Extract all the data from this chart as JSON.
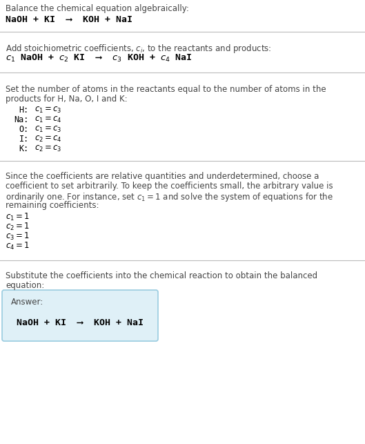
{
  "bg_color": "#ffffff",
  "text_color": "#000000",
  "gray_text": "#444444",
  "line_color": "#bbbbbb",
  "answer_box_color": "#dff0f7",
  "answer_box_edge": "#99cce0",
  "section1_line1": "Balance the chemical equation algebraically:",
  "section1_line2": "NaOH + KI  ⟶  KOH + NaI",
  "section2_line1": "Add stoichiometric coefficients, $c_i$, to the reactants and products:",
  "section2_line2_parts": [
    "$c_1$",
    " NaOH + ",
    "$c_2$",
    " KI  ⟶  ",
    "$c_3$",
    " KOH + ",
    "$c_4$",
    " NaI"
  ],
  "section3_line1": "Set the number of atoms in the reactants equal to the number of atoms in the",
  "section3_line2": "products for H, Na, O, I and K:",
  "section3_rows": [
    [
      "H:",
      "$c_1 = c_3$"
    ],
    [
      "Na:",
      "$c_1 = c_4$"
    ],
    [
      "O:",
      "$c_1 = c_3$"
    ],
    [
      "I:",
      "$c_2 = c_4$"
    ],
    [
      "K:",
      "$c_2 = c_3$"
    ]
  ],
  "section4_line1": "Since the coefficients are relative quantities and underdetermined, choose a",
  "section4_line2": "coefficient to set arbitrarily. To keep the coefficients small, the arbitrary value is",
  "section4_line3": "ordinarily one. For instance, set $c_1 = 1$ and solve the system of equations for the",
  "section4_line4": "remaining coefficients:",
  "section4_rows": [
    "$c_1 = 1$",
    "$c_2 = 1$",
    "$c_3 = 1$",
    "$c_4 = 1$"
  ],
  "section5_line1": "Substitute the coefficients into the chemical reaction to obtain the balanced",
  "section5_line2": "equation:",
  "answer_label": "Answer:",
  "answer_eq": "NaOH + KI  ⟶  KOH + NaI",
  "figsize": [
    5.29,
    6.43
  ],
  "dpi": 100
}
